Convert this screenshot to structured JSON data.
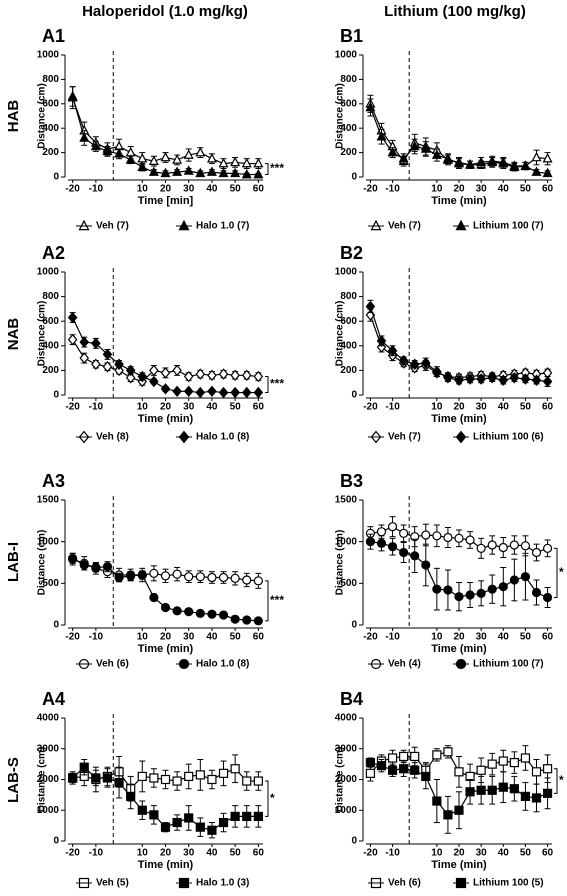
{
  "columns": [
    "Haloperidol (1.0 mg/kg)",
    "Lithium (100 mg/kg)"
  ],
  "rows": [
    "HAB",
    "NAB",
    "LAB-I",
    "LAB-S"
  ],
  "chart_data": [
    {
      "type": "line",
      "label": "A1",
      "y_label": "Distance (cm)",
      "x_label": "Time [min]",
      "marker": "triangle",
      "significance": "***",
      "x": [
        -20,
        -15,
        -10,
        -5,
        0,
        5,
        10,
        15,
        20,
        25,
        30,
        35,
        40,
        45,
        50,
        55,
        60
      ],
      "xlim": [
        -22,
        62
      ],
      "xticks": [
        -20,
        -10,
        10,
        20,
        30,
        40,
        50,
        60
      ],
      "ylim": [
        0,
        1000
      ],
      "yticks": [
        0,
        200,
        400,
        600,
        800,
        1000
      ],
      "series": [
        {
          "name": "Veh (7)",
          "color": "#000000",
          "fill": "#ffffff",
          "values": [
            650,
            380,
            280,
            230,
            250,
            200,
            150,
            130,
            160,
            140,
            180,
            200,
            150,
            110,
            120,
            110,
            110
          ],
          "errors": [
            90,
            70,
            50,
            50,
            60,
            50,
            50,
            40,
            40,
            40,
            50,
            40,
            40,
            40,
            40,
            40,
            40
          ]
        },
        {
          "name": "Halo 1.0 (7)",
          "color": "#000000",
          "fill": "#000000",
          "values": [
            660,
            320,
            250,
            210,
            190,
            140,
            80,
            40,
            30,
            40,
            50,
            30,
            40,
            30,
            30,
            20,
            20
          ],
          "errors": [
            80,
            60,
            40,
            40,
            40,
            30,
            30,
            20,
            20,
            20,
            20,
            20,
            20,
            20,
            20,
            10,
            10
          ]
        }
      ]
    },
    {
      "type": "line",
      "label": "B1",
      "y_label": "Distance (cm)",
      "x_label": "Time (min)",
      "marker": "triangle",
      "significance": null,
      "x": [
        -20,
        -15,
        -10,
        -5,
        0,
        5,
        10,
        15,
        20,
        25,
        30,
        35,
        40,
        45,
        50,
        55,
        60
      ],
      "xlim": [
        -22,
        62
      ],
      "xticks": [
        -20,
        -10,
        10,
        20,
        30,
        40,
        50,
        60
      ],
      "ylim": [
        0,
        1000
      ],
      "yticks": [
        0,
        200,
        400,
        600,
        800,
        1000
      ],
      "series": [
        {
          "name": "Veh (7)",
          "color": "#000000",
          "fill": "#ffffff",
          "values": [
            600,
            380,
            250,
            130,
            280,
            250,
            220,
            140,
            120,
            100,
            100,
            120,
            110,
            80,
            90,
            160,
            150
          ],
          "errors": [
            70,
            60,
            50,
            40,
            70,
            70,
            60,
            40,
            40,
            30,
            30,
            40,
            40,
            30,
            30,
            60,
            50
          ]
        },
        {
          "name": "Lithium 100 (7)",
          "color": "#000000",
          "fill": "#000000",
          "values": [
            570,
            330,
            200,
            150,
            250,
            230,
            180,
            150,
            110,
            100,
            120,
            130,
            120,
            90,
            90,
            40,
            30
          ],
          "errors": [
            70,
            60,
            40,
            40,
            60,
            60,
            50,
            40,
            40,
            30,
            40,
            40,
            40,
            30,
            30,
            20,
            20
          ]
        }
      ]
    },
    {
      "type": "line",
      "label": "A2",
      "y_label": "Distance (cm)",
      "x_label": "Time (min)",
      "marker": "diamond",
      "significance": "***",
      "x": [
        -20,
        -15,
        -10,
        -5,
        0,
        5,
        10,
        15,
        20,
        25,
        30,
        35,
        40,
        45,
        50,
        55,
        60
      ],
      "xlim": [
        -22,
        62
      ],
      "xticks": [
        -20,
        -10,
        10,
        20,
        30,
        40,
        50,
        60
      ],
      "ylim": [
        0,
        1000
      ],
      "yticks": [
        0,
        200,
        400,
        600,
        800,
        1000
      ],
      "series": [
        {
          "name": "Veh (8)",
          "color": "#000000",
          "fill": "#ffffff",
          "values": [
            450,
            300,
            250,
            230,
            200,
            140,
            110,
            200,
            180,
            200,
            150,
            170,
            160,
            170,
            160,
            160,
            150
          ],
          "errors": [
            40,
            40,
            30,
            30,
            30,
            30,
            30,
            40,
            40,
            40,
            30,
            30,
            30,
            30,
            30,
            30,
            30
          ]
        },
        {
          "name": "Halo 1.0 (8)",
          "color": "#000000",
          "fill": "#000000",
          "values": [
            630,
            430,
            420,
            330,
            250,
            200,
            150,
            110,
            50,
            30,
            30,
            20,
            30,
            20,
            20,
            20,
            20
          ],
          "errors": [
            40,
            40,
            40,
            40,
            30,
            30,
            30,
            20,
            20,
            10,
            10,
            10,
            10,
            10,
            10,
            10,
            10
          ]
        }
      ]
    },
    {
      "type": "line",
      "label": "B2",
      "y_label": "Distance (cm)",
      "x_label": "Time (min)",
      "marker": "diamond",
      "significance": null,
      "x": [
        -20,
        -15,
        -10,
        -5,
        0,
        5,
        10,
        15,
        20,
        25,
        30,
        35,
        40,
        45,
        50,
        55,
        60
      ],
      "xlim": [
        -22,
        62
      ],
      "xticks": [
        -20,
        -10,
        10,
        20,
        30,
        40,
        50,
        60
      ],
      "ylim": [
        0,
        1000
      ],
      "yticks": [
        0,
        200,
        400,
        600,
        800,
        1000
      ],
      "series": [
        {
          "name": "Veh (7)",
          "color": "#000000",
          "fill": "#ffffff",
          "values": [
            650,
            390,
            320,
            260,
            220,
            240,
            180,
            150,
            140,
            150,
            160,
            150,
            160,
            170,
            180,
            170,
            180
          ],
          "errors": [
            50,
            40,
            40,
            30,
            30,
            40,
            30,
            30,
            30,
            30,
            30,
            30,
            30,
            30,
            30,
            30,
            30
          ]
        },
        {
          "name": "Lithium 100 (6)",
          "color": "#000000",
          "fill": "#000000",
          "values": [
            720,
            440,
            360,
            280,
            250,
            260,
            190,
            140,
            120,
            130,
            130,
            140,
            120,
            140,
            130,
            120,
            110
          ],
          "errors": [
            50,
            40,
            40,
            30,
            30,
            40,
            40,
            30,
            30,
            30,
            30,
            30,
            30,
            30,
            30,
            30,
            40
          ]
        }
      ]
    },
    {
      "type": "line",
      "label": "A3",
      "y_label": "Distance (cm)",
      "x_label": "Time (min)",
      "marker": "circle",
      "significance": "***",
      "x": [
        -20,
        -15,
        -10,
        -5,
        0,
        5,
        10,
        15,
        20,
        25,
        30,
        35,
        40,
        45,
        50,
        55,
        60
      ],
      "xlim": [
        -22,
        62
      ],
      "xticks": [
        -20,
        -10,
        10,
        20,
        30,
        40,
        50,
        60
      ],
      "ylim": [
        0,
        1500
      ],
      "yticks": [
        0,
        500,
        1000,
        1500
      ],
      "series": [
        {
          "name": "Veh (6)",
          "color": "#000000",
          "fill": "#ffffff",
          "values": [
            790,
            740,
            680,
            640,
            600,
            600,
            600,
            620,
            590,
            610,
            580,
            580,
            570,
            570,
            560,
            540,
            530
          ],
          "errors": [
            70,
            80,
            70,
            70,
            80,
            70,
            80,
            90,
            80,
            80,
            70,
            70,
            70,
            70,
            80,
            80,
            90
          ]
        },
        {
          "name": "Halo 1.0 (8)",
          "color": "#000000",
          "fill": "#000000",
          "values": [
            800,
            720,
            690,
            700,
            570,
            590,
            600,
            330,
            210,
            170,
            160,
            140,
            130,
            120,
            70,
            60,
            50
          ],
          "errors": [
            60,
            60,
            50,
            60,
            50,
            50,
            50,
            40,
            30,
            20,
            20,
            20,
            20,
            20,
            20,
            10,
            10
          ]
        }
      ]
    },
    {
      "type": "line",
      "label": "B3",
      "y_label": "Distance (cm)",
      "x_label": "Time (min)",
      "marker": "circle",
      "significance": "*",
      "x": [
        -20,
        -15,
        -10,
        -5,
        0,
        5,
        10,
        15,
        20,
        25,
        30,
        35,
        40,
        45,
        50,
        55,
        60
      ],
      "xlim": [
        -22,
        62
      ],
      "xticks": [
        -20,
        -10,
        10,
        20,
        30,
        40,
        50,
        60
      ],
      "ylim": [
        0,
        1500
      ],
      "yticks": [
        0,
        500,
        1000,
        1500
      ],
      "series": [
        {
          "name": "Veh (4)",
          "color": "#000000",
          "fill": "#ffffff",
          "values": [
            1100,
            1120,
            1180,
            1100,
            1060,
            1080,
            1070,
            1050,
            1040,
            1020,
            920,
            960,
            930,
            960,
            950,
            870,
            920
          ],
          "errors": [
            80,
            80,
            120,
            100,
            120,
            130,
            130,
            120,
            100,
            100,
            120,
            110,
            120,
            110,
            120,
            100,
            100
          ]
        },
        {
          "name": "Lithium 100 (7)",
          "color": "#000000",
          "fill": "#000000",
          "values": [
            1000,
            980,
            940,
            870,
            830,
            720,
            430,
            420,
            340,
            360,
            380,
            430,
            460,
            540,
            580,
            390,
            330
          ],
          "errors": [
            90,
            90,
            100,
            120,
            200,
            250,
            250,
            240,
            170,
            150,
            150,
            170,
            230,
            250,
            280,
            150,
            120
          ]
        }
      ]
    },
    {
      "type": "line",
      "label": "A4",
      "y_label": "Distance (cm)",
      "x_label": "Time (min)",
      "marker": "square",
      "significance": "*",
      "x": [
        -20,
        -15,
        -10,
        -5,
        0,
        5,
        10,
        15,
        20,
        25,
        30,
        35,
        40,
        45,
        50,
        55,
        60
      ],
      "xlim": [
        -22,
        62
      ],
      "xticks": [
        -20,
        -10,
        10,
        20,
        30,
        40,
        50,
        60
      ],
      "ylim": [
        0,
        4000
      ],
      "yticks": [
        0,
        1000,
        2000,
        3000,
        4000
      ],
      "series": [
        {
          "name": "Veh (5)",
          "color": "#000000",
          "fill": "#ffffff",
          "values": [
            2050,
            2100,
            2000,
            2100,
            2250,
            1700,
            2100,
            2050,
            2000,
            1950,
            2100,
            2150,
            2000,
            2200,
            2350,
            1950,
            1950
          ],
          "errors": [
            200,
            300,
            400,
            300,
            500,
            400,
            500,
            300,
            300,
            300,
            400,
            500,
            300,
            400,
            450,
            300,
            300
          ]
        },
        {
          "name": "Halo 1.0 (3)",
          "color": "#000000",
          "fill": "#000000",
          "values": [
            2050,
            2400,
            2050,
            2050,
            1900,
            1450,
            1000,
            850,
            450,
            600,
            750,
            450,
            350,
            600,
            800,
            800,
            800
          ],
          "errors": [
            150,
            250,
            250,
            300,
            500,
            400,
            300,
            300,
            150,
            250,
            400,
            300,
            250,
            300,
            350,
            350,
            350
          ]
        }
      ]
    },
    {
      "type": "line",
      "label": "B4",
      "y_label": "Distance (cm)",
      "x_label": "Time (min)",
      "marker": "square",
      "significance": "*",
      "x": [
        -20,
        -15,
        -10,
        -5,
        0,
        5,
        10,
        15,
        20,
        25,
        30,
        35,
        40,
        45,
        50,
        55,
        60
      ],
      "xlim": [
        -22,
        62
      ],
      "xticks": [
        -20,
        -10,
        10,
        20,
        30,
        40,
        50,
        60
      ],
      "ylim": [
        0,
        4000
      ],
      "yticks": [
        0,
        1000,
        2000,
        3000,
        4000
      ],
      "series": [
        {
          "name": "Veh (6)",
          "color": "#000000",
          "fill": "#ffffff",
          "values": [
            2200,
            2600,
            2700,
            2750,
            2750,
            2300,
            2800,
            2900,
            2250,
            2100,
            2300,
            2500,
            2600,
            2550,
            2700,
            2250,
            2350
          ],
          "errors": [
            250,
            200,
            250,
            200,
            300,
            250,
            200,
            200,
            500,
            400,
            400,
            350,
            350,
            350,
            400,
            400,
            450
          ]
        },
        {
          "name": "Lithium 100 (5)",
          "color": "#000000",
          "fill": "#000000",
          "values": [
            2550,
            2450,
            2300,
            2350,
            2300,
            2100,
            1300,
            850,
            1000,
            1600,
            1650,
            1650,
            1750,
            1700,
            1450,
            1400,
            1550
          ],
          "errors": [
            150,
            200,
            200,
            250,
            250,
            400,
            700,
            600,
            600,
            400,
            450,
            450,
            500,
            400,
            450,
            450,
            500
          ]
        }
      ]
    }
  ]
}
